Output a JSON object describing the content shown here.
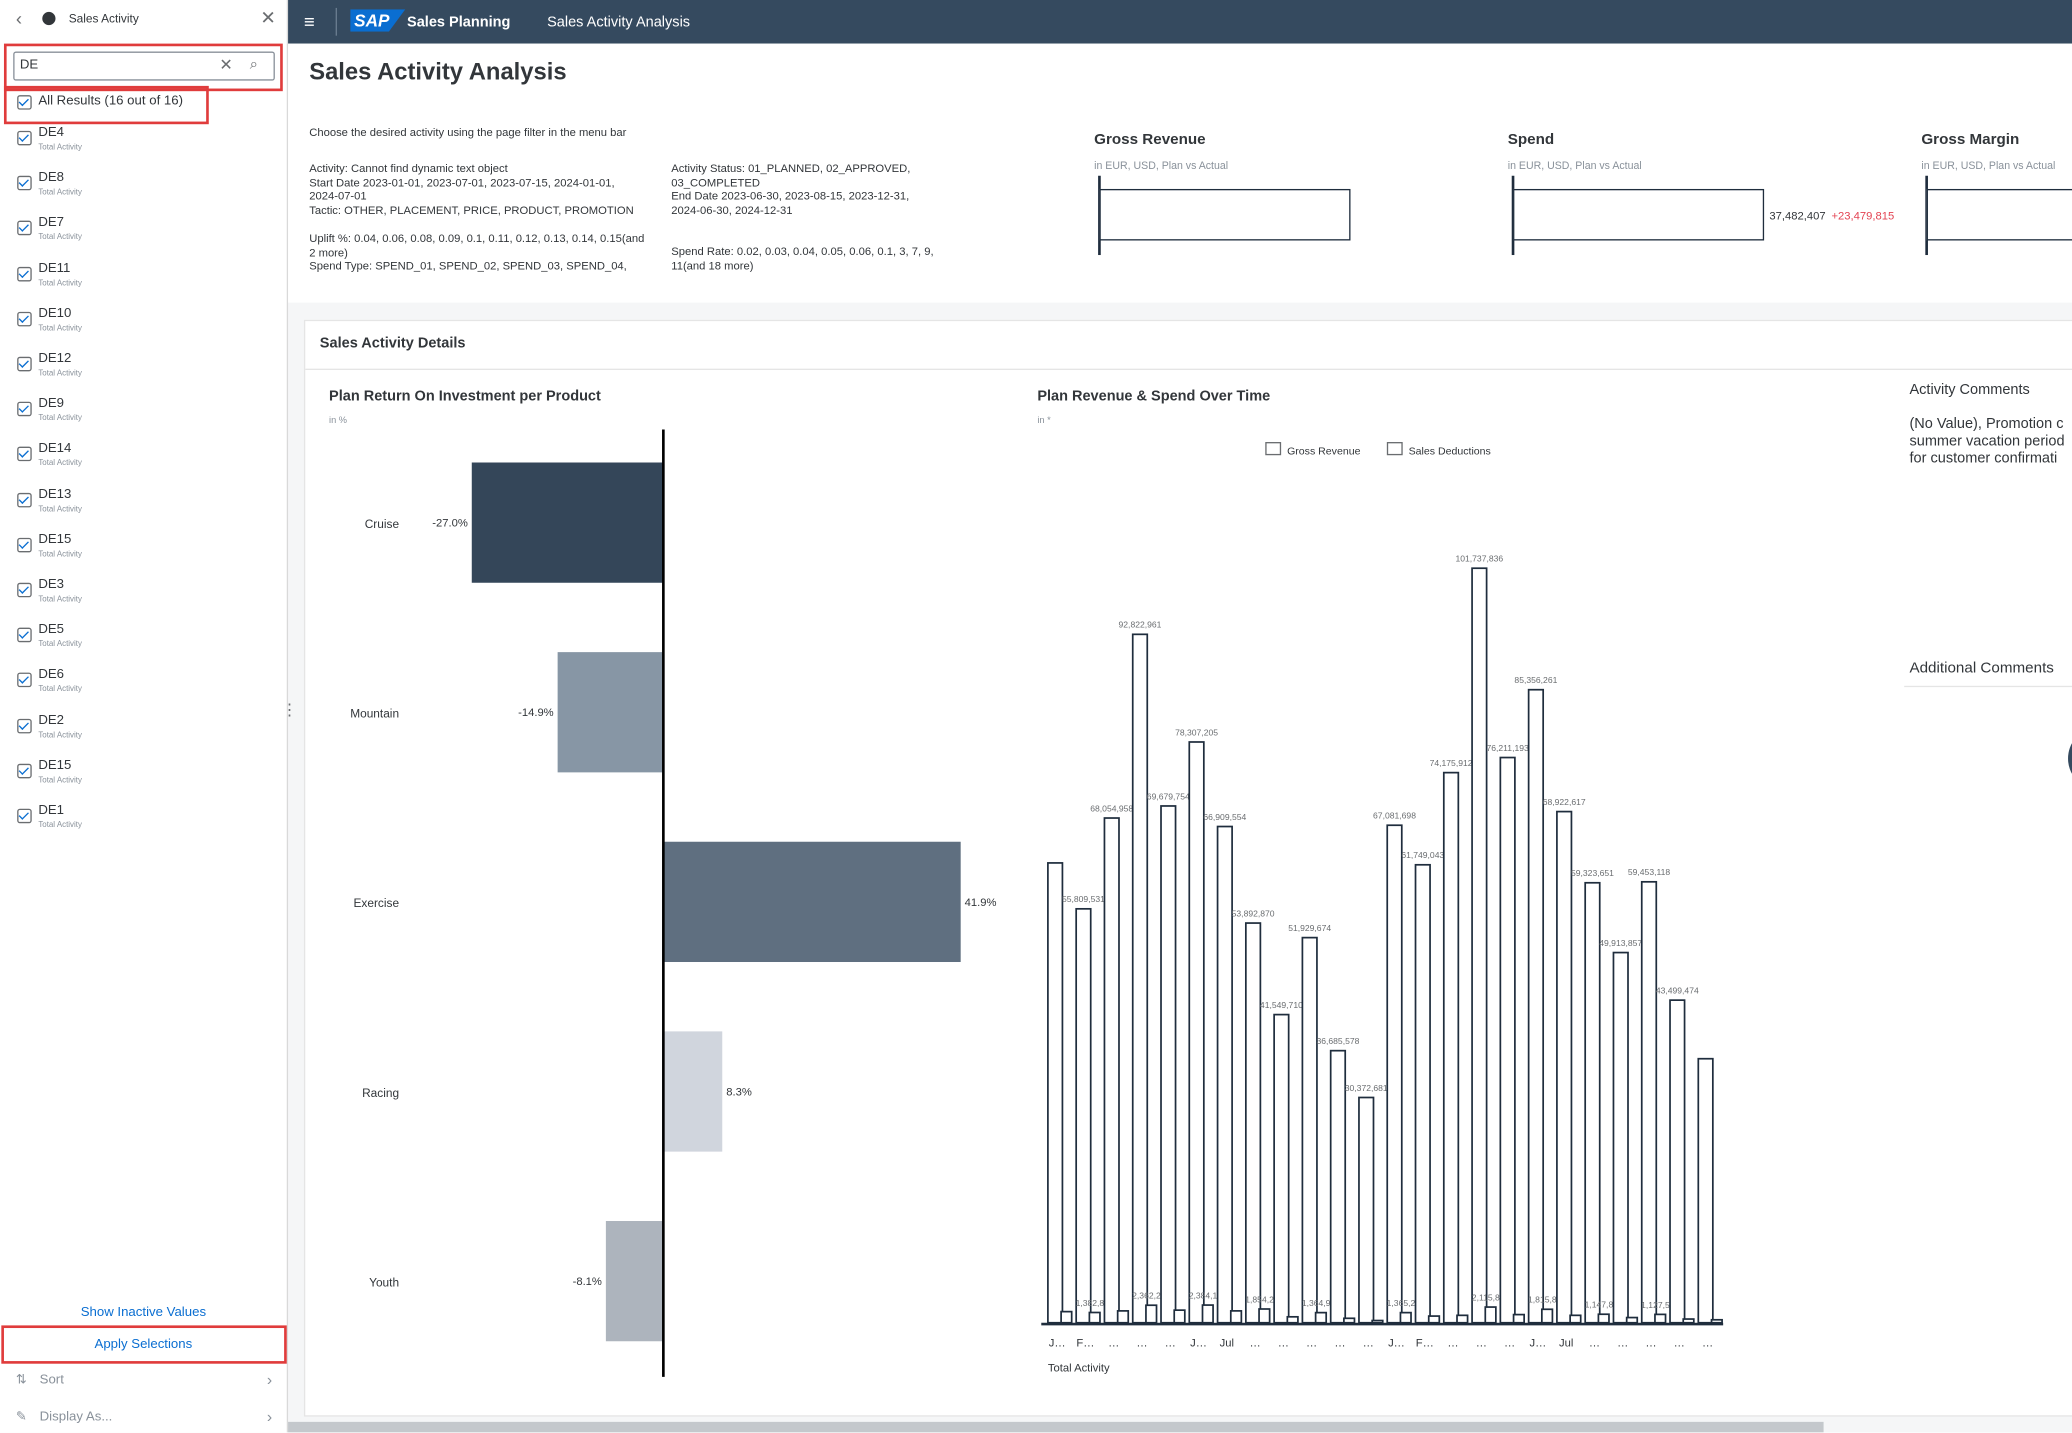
{
  "sidebar": {
    "title": "Sales Activity",
    "search": "DE",
    "all_results": "All Results (16 out of 16)",
    "items": [
      {
        "label": "DE4",
        "sub": "Total Activity"
      },
      {
        "label": "DE8",
        "sub": "Total Activity"
      },
      {
        "label": "DE7",
        "sub": "Total Activity"
      },
      {
        "label": "DE11",
        "sub": "Total Activity"
      },
      {
        "label": "DE10",
        "sub": "Total Activity"
      },
      {
        "label": "DE12",
        "sub": "Total Activity"
      },
      {
        "label": "DE9",
        "sub": "Total Activity"
      },
      {
        "label": "DE14",
        "sub": "Total Activity"
      },
      {
        "label": "DE13",
        "sub": "Total Activity"
      },
      {
        "label": "DE15",
        "sub": "Total Activity"
      },
      {
        "label": "DE3",
        "sub": "Total Activity"
      },
      {
        "label": "DE5",
        "sub": "Total Activity"
      },
      {
        "label": "DE6",
        "sub": "Total Activity"
      },
      {
        "label": "DE2",
        "sub": "Total Activity"
      },
      {
        "label": "DE15",
        "sub": "Total Activity"
      },
      {
        "label": "DE1",
        "sub": "Total Activity"
      }
    ],
    "show_inactive": "Show Inactive Values",
    "apply": "Apply Selections",
    "sort": "Sort",
    "display_as": "Display As..."
  },
  "header": {
    "logo": "SAP",
    "app": "Sales Planning",
    "page": "Sales Activity Analysis"
  },
  "page_title": "Sales Activity Analysis",
  "filters": {
    "hint": "Choose the desired activity using the page filter in the menu bar",
    "left_top": [
      "Activity: Cannot find dynamic text object",
      "Start Date 2023-01-01, 2023-07-01, 2023-07-15, 2024-01-01, 2024-07-01",
      "Tactic: OTHER, PLACEMENT, PRICE, PRODUCT, PROMOTION"
    ],
    "left_bottom": [
      "Uplift %: 0.04, 0.06, 0.08, 0.09, 0.1, 0.11, 0.12, 0.13, 0.14, 0.15(and 2 more)",
      "Spend Type: SPEND_01, SPEND_02, SPEND_03, SPEND_04,"
    ],
    "right_top": [
      "Activity Status: 01_PLANNED, 02_APPROVED, 03_COMPLETED",
      "End Date 2023-06-30, 2023-08-15, 2023-12-31, 2024-06-30, 2024-12-31"
    ],
    "right_bottom": [
      "Spend Rate: 0.02, 0.03, 0.04, 0.05, 0.06, 0.1, 3, 7, 9, 11(and 18 more)"
    ]
  },
  "kpis": [
    {
      "title": "Gross Revenue",
      "subtitle": "in EUR, USD, Plan vs Actual"
    },
    {
      "title": "Spend",
      "subtitle": "in EUR, USD, Plan vs Actual",
      "value": "37,482,407",
      "delta": "+23,479,815"
    },
    {
      "title": "Gross Margin",
      "subtitle": "in EUR, USD, Plan vs Actual"
    }
  ],
  "details_title": "Sales Activity Details",
  "chart_data": [
    {
      "type": "hbar",
      "title": "Plan Return On Investment per Product",
      "subtitle": "in %",
      "categories": [
        "Cruise",
        "Mountain",
        "Exercise",
        "Racing",
        "Youth"
      ],
      "values": [
        -27.0,
        -14.9,
        41.9,
        8.3,
        -8.1
      ],
      "value_labels": [
        "-27.0%",
        "-14.9%",
        "41.9%",
        "8.3%",
        "-8.1%"
      ],
      "colors": [
        "#344659",
        "#8796a5",
        "#5f6f80",
        "#d0d5dd",
        "#adb4bd"
      ]
    },
    {
      "type": "bar",
      "title": "Plan Revenue & Spend Over Time",
      "subtitle": "in *",
      "xlabel": "Total Activity",
      "categories": [
        "J…",
        "F…",
        "…",
        "…",
        "…",
        "J…",
        "Jul",
        "…",
        "…",
        "…",
        "…",
        "…",
        "J…",
        "F…",
        "…",
        "…",
        "…",
        "J…",
        "Jul",
        "…",
        "…",
        "…",
        "…",
        "…"
      ],
      "series": [
        {
          "name": "Gross Revenue",
          "color": "#ffffff",
          "values": [
            62000000,
            55809531,
            68054958,
            92822961,
            69679754,
            78307205,
            66909554,
            53892870,
            41549710,
            51929674,
            36685578,
            30372681,
            67081698,
            61749043,
            74175912,
            101737836,
            76211193,
            85356261,
            68922617,
            59323651,
            49913857,
            59453118,
            43499474,
            35600000
          ],
          "value_labels": [
            null,
            "55,809,531",
            "68,054,958",
            "92,822,961",
            "69,679,754",
            "78,307,205",
            "66,909,554",
            "53,892,870",
            "41,549,710",
            "51,929,674",
            "36,685,578",
            "30,372,681",
            "67,081,698",
            "61,749,043",
            "74,175,912",
            "101,737,836",
            "76,211,193",
            "85,356,261",
            "68,922,617",
            "59,323,651",
            "49,913,857",
            "59,453,118",
            "43,499,474",
            null
          ]
        },
        {
          "name": "Sales Deductions",
          "color": "#ffffff",
          "values": [
            1500000,
            1382899,
            1600000,
            2362296,
            1700000,
            2384104,
            1600000,
            1854267,
            800000,
            1364942,
            600000,
            300000,
            1365229,
            900000,
            1000000,
            2115883,
            1100000,
            1815831,
            1000000,
            1147873,
            700000,
            1127559,
            500000,
            400000
          ],
          "value_labels": [
            null,
            "1,382,899",
            null,
            "2,362,296",
            null,
            "2,384,104",
            null,
            "1,854,267",
            null,
            "1,364,942",
            null,
            null,
            "1,365,229",
            null,
            null,
            "2,115,883",
            null,
            "1,815,831",
            null,
            "1,147,873",
            null,
            "1,127,559",
            null,
            null
          ]
        }
      ]
    }
  ],
  "comments": {
    "title": "Activity Comments",
    "lines": [
      "(No Value), Promotion c",
      "summer vacation period",
      "for customer confirmati"
    ],
    "additional": "Additional Comments"
  }
}
